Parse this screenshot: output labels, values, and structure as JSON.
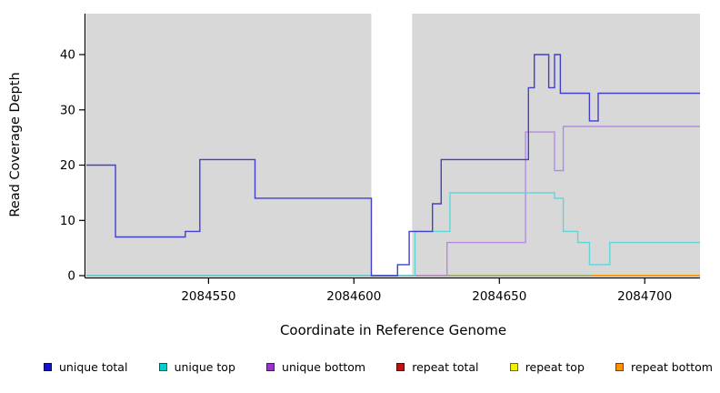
{
  "chart_data": {
    "type": "line",
    "step": true,
    "title": "",
    "xlabel": "Coordinate in Reference Genome",
    "ylabel": "Read Coverage Depth",
    "xlim": [
      2084508,
      2084719
    ],
    "ylim": [
      0,
      47
    ],
    "x_ticks": [
      2084550,
      2084600,
      2084650,
      2084700
    ],
    "y_ticks": [
      0,
      10,
      20,
      30,
      40
    ],
    "grid": false,
    "legend_position": "bottom",
    "plot_bg": "#d8d8d8",
    "masked_region": {
      "x_start": 2084606,
      "x_end": 2084620,
      "color": "#ffffff"
    },
    "baseline_overlay": {
      "color": "#8db48d",
      "x_start": 2084508,
      "x_end": 2084682,
      "y": 0
    },
    "draw_order": [
      "repeat_total",
      "repeat_top",
      "repeat_bottom",
      "baseline",
      "unique_bottom",
      "unique_top",
      "unique_total"
    ],
    "series": [
      {
        "id": "unique_total",
        "name": "unique total",
        "color": "#4040cf",
        "swatch": "#1414cf",
        "steps": [
          [
            2084508,
            20
          ],
          [
            2084518,
            7
          ],
          [
            2084542,
            8
          ],
          [
            2084547,
            21
          ],
          [
            2084566,
            14
          ],
          [
            2084606,
            0
          ],
          [
            2084615,
            2
          ],
          [
            2084619,
            8
          ],
          [
            2084627,
            13
          ],
          [
            2084630,
            21
          ],
          [
            2084660,
            34
          ],
          [
            2084662,
            40
          ],
          [
            2084667,
            34
          ],
          [
            2084669,
            40
          ],
          [
            2084671,
            33
          ],
          [
            2084681,
            28
          ],
          [
            2084684,
            33
          ]
        ]
      },
      {
        "id": "unique_top",
        "name": "unique top",
        "color": "#5fd6d6",
        "swatch": "#00cfcf",
        "steps": [
          [
            2084508,
            0
          ],
          [
            2084621,
            8
          ],
          [
            2084633,
            15
          ],
          [
            2084669,
            14
          ],
          [
            2084672,
            8
          ],
          [
            2084677,
            6
          ],
          [
            2084681,
            2
          ],
          [
            2084688,
            6
          ]
        ]
      },
      {
        "id": "unique_bottom",
        "name": "unique bottom",
        "color": "#b48ae0",
        "swatch": "#9933cc",
        "steps": [
          [
            2084508,
            0
          ],
          [
            2084632,
            6
          ],
          [
            2084659,
            26
          ],
          [
            2084669,
            19
          ],
          [
            2084672,
            27
          ]
        ]
      },
      {
        "id": "repeat_total",
        "name": "repeat total",
        "color": "#c21010",
        "swatch": "#c21010",
        "steps": [
          [
            2084508,
            0
          ]
        ]
      },
      {
        "id": "repeat_top",
        "name": "repeat top",
        "color": "#f2f200",
        "swatch": "#f2f200",
        "steps": [
          [
            2084508,
            0
          ]
        ]
      },
      {
        "id": "repeat_bottom",
        "name": "repeat bottom",
        "color": "#ff9100",
        "swatch": "#ff9100",
        "steps": [
          [
            2084508,
            0
          ]
        ]
      }
    ]
  }
}
